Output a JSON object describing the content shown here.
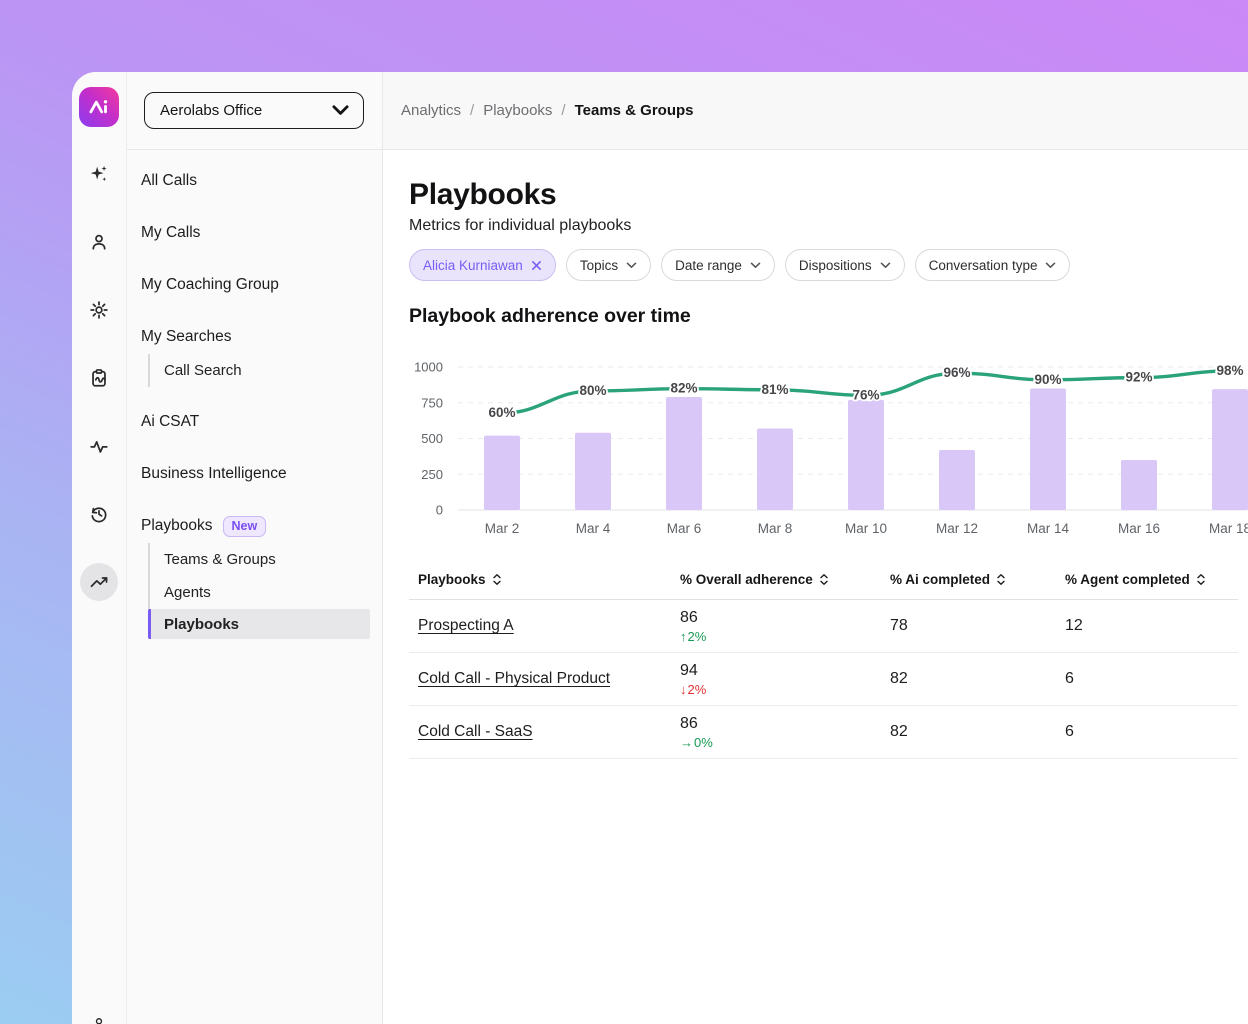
{
  "workspace": {
    "name": "Aerolabs Office"
  },
  "breadcrumb": {
    "separator": "/",
    "items": [
      "Analytics",
      "Playbooks",
      "Teams & Groups"
    ]
  },
  "sidebar": {
    "rail_icons": [
      "sparkles",
      "user",
      "settings-gear",
      "playbook-clipboard",
      "activity-pulse",
      "history-clock",
      "trending-up",
      "user-bottom-partial"
    ],
    "active_rail_icon": "trending-up",
    "items": [
      {
        "label": "All Calls"
      },
      {
        "label": "My Calls"
      },
      {
        "label": "My Coaching Group"
      },
      {
        "label": "My Searches",
        "children": [
          {
            "label": "Call Search"
          }
        ]
      },
      {
        "label": "Ai CSAT"
      },
      {
        "label": "Business Intelligence"
      },
      {
        "label": "Playbooks",
        "badge": "New",
        "children": [
          {
            "label": "Teams & Groups"
          },
          {
            "label": "Agents"
          },
          {
            "label": "Playbooks",
            "active": true
          }
        ]
      }
    ]
  },
  "page": {
    "title": "Playbooks",
    "subtitle": "Metrics for individual playbooks"
  },
  "filters": {
    "selected": {
      "label": "Alicia Kurniawan"
    },
    "dropdowns": [
      {
        "label": "Topics"
      },
      {
        "label": "Date range"
      },
      {
        "label": "Dispositions"
      },
      {
        "label": "Conversation type"
      }
    ]
  },
  "chart_section": {
    "title": "Playbook adherence over time"
  },
  "chart_data": {
    "type": "bar+line",
    "title": "Playbook adherence over time",
    "categories": [
      "Mar 2",
      "Mar 4",
      "Mar 6",
      "Mar 8",
      "Mar 10",
      "Mar 12",
      "Mar 14",
      "Mar 16",
      "Mar 18"
    ],
    "series": [
      {
        "name": "call-volume",
        "type": "bar",
        "values": [
          520,
          540,
          790,
          570,
          770,
          420,
          850,
          350,
          845
        ],
        "color": "#d9c7f8"
      },
      {
        "name": "adherence-percent",
        "type": "line",
        "values": [
          60,
          80,
          82,
          81,
          76,
          96,
          90,
          92,
          98
        ],
        "unit": "%",
        "labels": [
          "60%",
          "80%",
          "82%",
          "81%",
          "76%",
          "96%",
          "90%",
          "92%",
          "98%"
        ],
        "color": "#2aa37a"
      }
    ],
    "ylim": [
      0,
      1000
    ],
    "yticks": [
      0,
      250,
      500,
      750,
      1000
    ],
    "grid": "dashed-horizontal",
    "legend": "none"
  },
  "table": {
    "columns": [
      "Playbooks",
      "% Overall adherence",
      "% Ai completed",
      "% Agent completed"
    ],
    "rows": [
      {
        "playbook": "Prospecting A",
        "adherence": "86",
        "trend": {
          "arrow": "↑",
          "text": "2%",
          "dir": "up"
        },
        "ai_completed": "78",
        "agent_completed": "12"
      },
      {
        "playbook": "Cold Call - Physical Product",
        "adherence": "94",
        "trend": {
          "arrow": "↓",
          "text": "2%",
          "dir": "down"
        },
        "ai_completed": "82",
        "agent_completed": "6"
      },
      {
        "playbook": "Cold Call - SaaS",
        "adherence": "86",
        "trend": {
          "arrow": "→",
          "text": "0%",
          "dir": "flat"
        },
        "ai_completed": "82",
        "agent_completed": "6"
      }
    ]
  },
  "colors": {
    "accent_purple": "#7a5cf5",
    "bar_fill": "#d9c7f8",
    "line_green": "#2aa37a",
    "trend_up": "#179a53",
    "trend_down": "#e03131"
  }
}
